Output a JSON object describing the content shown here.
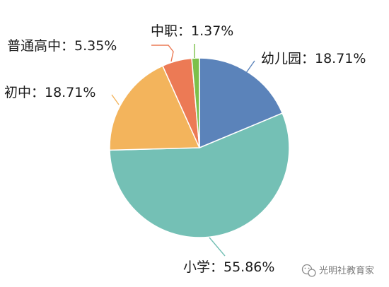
{
  "chart_data": {
    "type": "pie",
    "start_angle_deg": 0,
    "direction": "clockwise",
    "slices": [
      {
        "label": "幼儿园：18.71%",
        "value": 18.71,
        "color": "#5b83ba"
      },
      {
        "label": "小学：55.86%",
        "value": 55.86,
        "color": "#74c0b5"
      },
      {
        "label": "初中：18.71%",
        "value": 18.71,
        "color": "#f3b45c"
      },
      {
        "label": "普通高中：5.35%",
        "value": 5.35,
        "color": "#ec7a55"
      },
      {
        "label": "中职：1.37%",
        "value": 1.37,
        "color": "#7cc04a"
      }
    ]
  },
  "watermark": {
    "text": "光明社教育家",
    "icon": "wechat-icon"
  }
}
